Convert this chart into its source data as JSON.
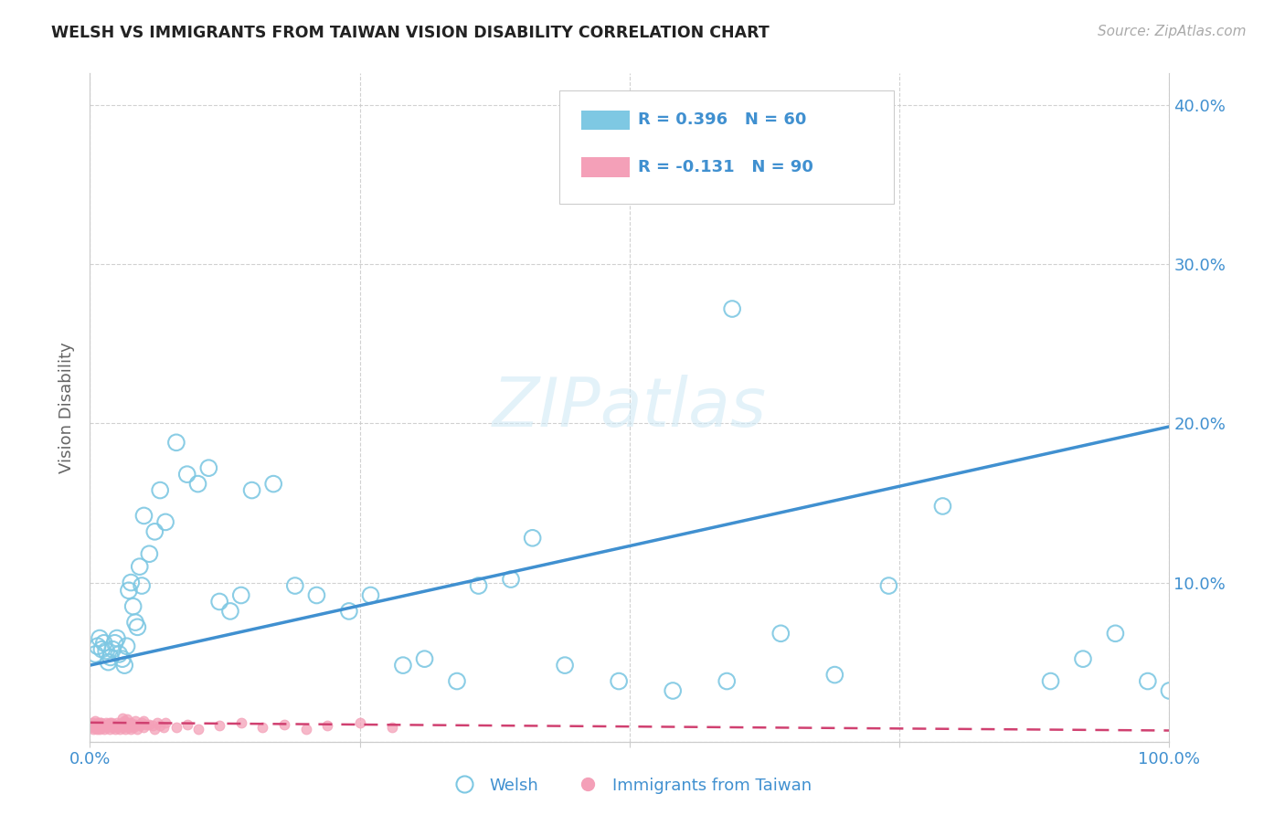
{
  "title": "WELSH VS IMMIGRANTS FROM TAIWAN VISION DISABILITY CORRELATION CHART",
  "source": "Source: ZipAtlas.com",
  "ylabel": "Vision Disability",
  "xlim": [
    0,
    1.0
  ],
  "ylim": [
    0,
    0.42
  ],
  "welsh_r": 0.396,
  "welsh_n": 60,
  "taiwan_r": -0.131,
  "taiwan_n": 90,
  "welsh_color": "#7ec8e3",
  "welsh_line_color": "#4090d0",
  "taiwan_color": "#f4a0b8",
  "taiwan_line_color": "#d04070",
  "welsh_line_x0": 0.0,
  "welsh_line_y0": 0.048,
  "welsh_line_x1": 1.0,
  "welsh_line_y1": 0.198,
  "taiwan_line_x0": 0.0,
  "taiwan_line_y0": 0.012,
  "taiwan_line_x1": 1.0,
  "taiwan_line_y1": 0.007,
  "welsh_x": [
    0.005,
    0.007,
    0.009,
    0.011,
    0.013,
    0.015,
    0.017,
    0.019,
    0.021,
    0.023,
    0.025,
    0.027,
    0.03,
    0.032,
    0.034,
    0.036,
    0.038,
    0.04,
    0.042,
    0.044,
    0.046,
    0.048,
    0.05,
    0.055,
    0.06,
    0.065,
    0.07,
    0.08,
    0.09,
    0.1,
    0.11,
    0.12,
    0.13,
    0.14,
    0.15,
    0.17,
    0.19,
    0.21,
    0.24,
    0.26,
    0.29,
    0.31,
    0.34,
    0.36,
    0.39,
    0.41,
    0.44,
    0.49,
    0.54,
    0.59,
    0.64,
    0.69,
    0.74,
    0.79,
    0.595,
    0.89,
    0.92,
    0.95,
    0.98,
    1.0
  ],
  "welsh_y": [
    0.055,
    0.06,
    0.065,
    0.058,
    0.062,
    0.057,
    0.05,
    0.053,
    0.058,
    0.062,
    0.065,
    0.055,
    0.052,
    0.048,
    0.06,
    0.095,
    0.1,
    0.085,
    0.075,
    0.072,
    0.11,
    0.098,
    0.142,
    0.118,
    0.132,
    0.158,
    0.138,
    0.188,
    0.168,
    0.162,
    0.172,
    0.088,
    0.082,
    0.092,
    0.158,
    0.162,
    0.098,
    0.092,
    0.082,
    0.092,
    0.048,
    0.052,
    0.038,
    0.098,
    0.102,
    0.128,
    0.048,
    0.038,
    0.032,
    0.038,
    0.068,
    0.042,
    0.098,
    0.148,
    0.272,
    0.038,
    0.052,
    0.068,
    0.038,
    0.032
  ],
  "taiwan_x": [
    0.0005,
    0.001,
    0.0015,
    0.002,
    0.0025,
    0.003,
    0.0035,
    0.004,
    0.0045,
    0.005,
    0.0055,
    0.006,
    0.0065,
    0.007,
    0.0075,
    0.008,
    0.0085,
    0.009,
    0.0095,
    0.01,
    0.011,
    0.012,
    0.013,
    0.014,
    0.015,
    0.016,
    0.017,
    0.018,
    0.019,
    0.02,
    0.021,
    0.022,
    0.023,
    0.024,
    0.025,
    0.026,
    0.027,
    0.028,
    0.029,
    0.03,
    0.031,
    0.032,
    0.033,
    0.034,
    0.035,
    0.036,
    0.037,
    0.038,
    0.039,
    0.04,
    0.042,
    0.044,
    0.046,
    0.048,
    0.05,
    0.055,
    0.06,
    0.065,
    0.07,
    0.08,
    0.09,
    0.1,
    0.12,
    0.14,
    0.16,
    0.18,
    0.2,
    0.22,
    0.25,
    0.28,
    0.03,
    0.032,
    0.034,
    0.038,
    0.042,
    0.046,
    0.008,
    0.01,
    0.012,
    0.014,
    0.016,
    0.018,
    0.022,
    0.026,
    0.028,
    0.05,
    0.052,
    0.058,
    0.062,
    0.068
  ],
  "taiwan_y": [
    0.01,
    0.011,
    0.009,
    0.012,
    0.01,
    0.008,
    0.011,
    0.009,
    0.013,
    0.01,
    0.009,
    0.011,
    0.008,
    0.012,
    0.01,
    0.009,
    0.011,
    0.008,
    0.012,
    0.01,
    0.009,
    0.011,
    0.008,
    0.01,
    0.012,
    0.009,
    0.011,
    0.008,
    0.01,
    0.012,
    0.009,
    0.011,
    0.008,
    0.01,
    0.012,
    0.009,
    0.011,
    0.008,
    0.01,
    0.012,
    0.009,
    0.011,
    0.008,
    0.01,
    0.012,
    0.009,
    0.011,
    0.008,
    0.01,
    0.009,
    0.011,
    0.008,
    0.01,
    0.012,
    0.009,
    0.011,
    0.008,
    0.01,
    0.012,
    0.009,
    0.011,
    0.008,
    0.01,
    0.012,
    0.009,
    0.011,
    0.008,
    0.01,
    0.012,
    0.009,
    0.015,
    0.013,
    0.014,
    0.012,
    0.013,
    0.011,
    0.01,
    0.012,
    0.009,
    0.011,
    0.01,
    0.012,
    0.009,
    0.011,
    0.01,
    0.013,
    0.011,
    0.01,
    0.012,
    0.009
  ]
}
